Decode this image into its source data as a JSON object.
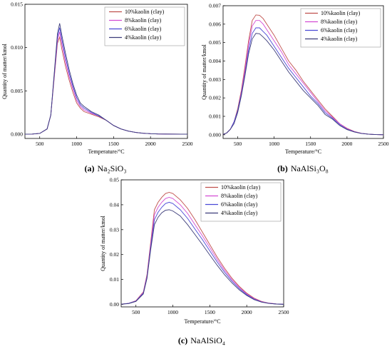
{
  "page": {
    "background": "#ffffff"
  },
  "charts": [
    {
      "id": "a",
      "caption_letter": "(a)",
      "caption_text": "Na₂SiO₃",
      "type": "line",
      "xlabel": "Temperature/°C",
      "ylabel": "Quantity of matter/kmol",
      "xlim": [
        300,
        2500
      ],
      "ylim": [
        -0.0005,
        0.015
      ],
      "xticks": [
        500,
        1000,
        1500,
        2000,
        2500
      ],
      "yticks": [
        0.0,
        0.005,
        0.01,
        0.015
      ],
      "ytick_labels": [
        "0.000",
        "0.005",
        "0.010",
        "0.015"
      ],
      "legend_position": "top-right",
      "series": [
        {
          "name": "10%kaolin (clay)",
          "color": "#c0504d",
          "x": [
            300,
            400,
            500,
            600,
            650,
            700,
            740,
            770,
            800,
            850,
            900,
            950,
            1000,
            1050,
            1100,
            1200,
            1300,
            1400,
            1500,
            1600,
            1700,
            1800,
            1900,
            2000,
            2100,
            2200,
            2500
          ],
          "y": [
            0,
            1e-05,
            8e-05,
            0.0006,
            0.0022,
            0.0068,
            0.0105,
            0.0112,
            0.0098,
            0.0078,
            0.0062,
            0.0048,
            0.0036,
            0.003,
            0.0026,
            0.0023,
            0.002,
            0.0016,
            0.001,
            0.0006,
            0.00035,
            0.0002,
            0.0001,
            5e-05,
            2e-05,
            1e-05,
            0
          ]
        },
        {
          "name": "8%kaolin (clay)",
          "color": "#d34cd3",
          "x": [
            300,
            400,
            500,
            600,
            650,
            700,
            740,
            770,
            800,
            850,
            900,
            950,
            1000,
            1050,
            1100,
            1200,
            1300,
            1400,
            1500,
            1600,
            1700,
            1800,
            1900,
            2000,
            2100,
            2200,
            2500
          ],
          "y": [
            0,
            1e-05,
            8e-05,
            0.0006,
            0.0022,
            0.007,
            0.0108,
            0.0118,
            0.0104,
            0.0083,
            0.0066,
            0.0052,
            0.0039,
            0.0032,
            0.0028,
            0.0024,
            0.0021,
            0.0016,
            0.001,
            0.0006,
            0.00035,
            0.0002,
            0.0001,
            5e-05,
            2e-05,
            1e-05,
            0
          ]
        },
        {
          "name": "6%kaolin (clay)",
          "color": "#4a4ad6",
          "x": [
            300,
            400,
            500,
            600,
            650,
            700,
            740,
            770,
            800,
            850,
            900,
            950,
            1000,
            1050,
            1100,
            1200,
            1300,
            1400,
            1500,
            1600,
            1700,
            1800,
            1900,
            2000,
            2100,
            2200,
            2500
          ],
          "y": [
            0,
            1e-05,
            8e-05,
            0.0006,
            0.0022,
            0.0072,
            0.0112,
            0.0123,
            0.0109,
            0.0088,
            0.007,
            0.0055,
            0.0042,
            0.0034,
            0.003,
            0.0025,
            0.0021,
            0.0016,
            0.001,
            0.0006,
            0.00035,
            0.0002,
            0.0001,
            5e-05,
            2e-05,
            1e-05,
            0
          ]
        },
        {
          "name": "4%kaolin (clay)",
          "color": "#3d3d7a",
          "x": [
            300,
            400,
            500,
            600,
            650,
            700,
            740,
            770,
            800,
            850,
            900,
            950,
            1000,
            1050,
            1100,
            1200,
            1300,
            1400,
            1500,
            1600,
            1700,
            1800,
            1900,
            2000,
            2100,
            2200,
            2500
          ],
          "y": [
            0,
            1e-05,
            8e-05,
            0.0006,
            0.0022,
            0.0074,
            0.0116,
            0.0128,
            0.0114,
            0.0093,
            0.0074,
            0.0058,
            0.0045,
            0.0036,
            0.0032,
            0.0026,
            0.0022,
            0.0016,
            0.001,
            0.0006,
            0.00035,
            0.0002,
            0.0001,
            5e-05,
            2e-05,
            1e-05,
            0
          ]
        }
      ]
    },
    {
      "id": "b",
      "caption_letter": "(b)",
      "caption_text": "NaAlSi₃O₈",
      "type": "line",
      "xlabel": "Temperature/°C",
      "ylabel": "Quantity of matter/kmol",
      "xlim": [
        300,
        2500
      ],
      "ylim": [
        -0.0002,
        0.007
      ],
      "xticks": [
        500,
        1000,
        1500,
        2000,
        2500
      ],
      "yticks": [
        0.0,
        0.001,
        0.002,
        0.003,
        0.004,
        0.005,
        0.006,
        0.007
      ],
      "ytick_labels": [
        "0.000",
        "0.001",
        "0.002",
        "0.003",
        "0.004",
        "0.005",
        "0.006",
        "0.007"
      ],
      "legend_position": "top-right",
      "series": [
        {
          "name": "10%kaolin (clay)",
          "color": "#c0504d",
          "x": [
            300,
            350,
            400,
            450,
            500,
            550,
            600,
            650,
            700,
            750,
            800,
            850,
            900,
            1000,
            1100,
            1200,
            1300,
            1400,
            1500,
            1600,
            1700,
            1800,
            1900,
            2000,
            2100,
            2200,
            2300,
            2400,
            2500
          ],
          "y": [
            2e-05,
            0.0001,
            0.0003,
            0.0007,
            0.0014,
            0.0024,
            0.0037,
            0.0051,
            0.0062,
            0.0065,
            0.00648,
            0.0063,
            0.006,
            0.0054,
            0.0047,
            0.004,
            0.0035,
            0.0029,
            0.0024,
            0.0019,
            0.0014,
            0.001,
            0.0006,
            0.00035,
            0.00018,
            8e-05,
            3e-05,
            1e-05,
            0
          ]
        },
        {
          "name": "8%kaolin (clay)",
          "color": "#d34cd3",
          "x": [
            300,
            350,
            400,
            450,
            500,
            550,
            600,
            650,
            700,
            750,
            800,
            850,
            900,
            1000,
            1100,
            1200,
            1300,
            1400,
            1500,
            1600,
            1700,
            1800,
            1900,
            2000,
            2100,
            2200,
            2300,
            2400,
            2500
          ],
          "y": [
            2e-05,
            0.0001,
            0.0003,
            0.0007,
            0.0013,
            0.0023,
            0.0035,
            0.0049,
            0.0059,
            0.0062,
            0.0062,
            0.006,
            0.0057,
            0.0051,
            0.0045,
            0.0038,
            0.0033,
            0.0028,
            0.0023,
            0.0018,
            0.0013,
            0.00095,
            0.0006,
            0.00033,
            0.00017,
            8e-05,
            3e-05,
            1e-05,
            0
          ]
        },
        {
          "name": "6%kaolin (clay)",
          "color": "#4a4ad6",
          "x": [
            300,
            350,
            400,
            450,
            500,
            550,
            600,
            650,
            700,
            750,
            800,
            850,
            900,
            1000,
            1100,
            1200,
            1300,
            1400,
            1500,
            1600,
            1700,
            1800,
            1900,
            2000,
            2100,
            2200,
            2300,
            2400,
            2500
          ],
          "y": [
            2e-05,
            0.0001,
            0.0003,
            0.0007,
            0.0013,
            0.0022,
            0.0033,
            0.0046,
            0.0055,
            0.0058,
            0.0058,
            0.0056,
            0.0054,
            0.0048,
            0.0042,
            0.0036,
            0.0031,
            0.0026,
            0.0021,
            0.0017,
            0.0012,
            0.0009,
            0.00055,
            0.0003,
            0.00016,
            7e-05,
            3e-05,
            1e-05,
            0
          ]
        },
        {
          "name": "4%kaolin (clay)",
          "color": "#3d3d7a",
          "x": [
            300,
            350,
            400,
            450,
            500,
            550,
            600,
            650,
            700,
            750,
            800,
            850,
            900,
            1000,
            1100,
            1200,
            1300,
            1400,
            1500,
            1600,
            1700,
            1800,
            1900,
            2000,
            2100,
            2200,
            2300,
            2400,
            2500
          ],
          "y": [
            2e-05,
            0.0001,
            0.0003,
            0.0006,
            0.0012,
            0.0021,
            0.0032,
            0.0044,
            0.0052,
            0.0055,
            0.00548,
            0.0053,
            0.0051,
            0.0046,
            0.004,
            0.0034,
            0.0029,
            0.0024,
            0.002,
            0.0016,
            0.0011,
            0.00085,
            0.0005,
            0.00028,
            0.00015,
            7e-05,
            3e-05,
            1e-05,
            0
          ]
        }
      ]
    },
    {
      "id": "c",
      "caption_letter": "(c)",
      "caption_text": "NaAlSiO₄",
      "type": "line",
      "xlabel": "Temperature/°C",
      "ylabel": "Quantity of matter/kmol",
      "xlim": [
        300,
        2500
      ],
      "ylim": [
        -0.001,
        0.05
      ],
      "xticks": [
        500,
        1000,
        1500,
        2000,
        2500
      ],
      "yticks": [
        0.0,
        0.01,
        0.02,
        0.03,
        0.04,
        0.05
      ],
      "ytick_labels": [
        "0.00",
        "0.01",
        "0.02",
        "0.03",
        "0.04",
        "0.05"
      ],
      "legend_position": "top-right",
      "series": [
        {
          "name": "10%kaolin (clay)",
          "color": "#c0504d",
          "x": [
            300,
            400,
            500,
            600,
            650,
            700,
            750,
            800,
            850,
            900,
            950,
            1000,
            1100,
            1200,
            1300,
            1400,
            1500,
            1600,
            1700,
            1800,
            1900,
            2000,
            2100,
            2200,
            2300,
            2400,
            2500
          ],
          "y": [
            0.0001,
            0.0004,
            0.0015,
            0.005,
            0.012,
            0.025,
            0.038,
            0.041,
            0.043,
            0.0445,
            0.045,
            0.0445,
            0.042,
            0.0385,
            0.034,
            0.029,
            0.024,
            0.019,
            0.0145,
            0.0105,
            0.0072,
            0.0045,
            0.0025,
            0.0012,
            0.0005,
            0.0002,
            5e-05
          ]
        },
        {
          "name": "8%kaolin (clay)",
          "color": "#d34cd3",
          "x": [
            300,
            400,
            500,
            600,
            650,
            700,
            750,
            800,
            850,
            900,
            950,
            1000,
            1100,
            1200,
            1300,
            1400,
            1500,
            1600,
            1700,
            1800,
            1900,
            2000,
            2100,
            2200,
            2300,
            2400,
            2500
          ],
          "y": [
            0.0001,
            0.0004,
            0.0014,
            0.0048,
            0.0115,
            0.024,
            0.036,
            0.039,
            0.041,
            0.0425,
            0.043,
            0.0425,
            0.04,
            0.0365,
            0.032,
            0.0275,
            0.0228,
            0.018,
            0.0137,
            0.0099,
            0.0068,
            0.0042,
            0.0023,
            0.0011,
            0.0005,
            0.0002,
            5e-05
          ]
        },
        {
          "name": "6%kaolin (clay)",
          "color": "#4a4ad6",
          "x": [
            300,
            400,
            500,
            600,
            650,
            700,
            750,
            800,
            850,
            900,
            950,
            1000,
            1100,
            1200,
            1300,
            1400,
            1500,
            1600,
            1700,
            1800,
            1900,
            2000,
            2100,
            2200,
            2300,
            2400,
            2500
          ],
          "y": [
            0.0001,
            0.0004,
            0.0013,
            0.0045,
            0.011,
            0.023,
            0.034,
            0.037,
            0.039,
            0.0405,
            0.041,
            0.0405,
            0.038,
            0.0345,
            0.0302,
            0.026,
            0.0215,
            0.017,
            0.0129,
            0.0093,
            0.0063,
            0.0039,
            0.0021,
            0.001,
            0.0004,
            0.00015,
            4e-05
          ]
        },
        {
          "name": "4%kaolin (clay)",
          "color": "#3d3d7a",
          "x": [
            300,
            400,
            500,
            600,
            650,
            700,
            750,
            800,
            850,
            900,
            950,
            1000,
            1100,
            1200,
            1300,
            1400,
            1500,
            1600,
            1700,
            1800,
            1900,
            2000,
            2100,
            2200,
            2300,
            2400,
            2500
          ],
          "y": [
            0.0001,
            0.0003,
            0.0012,
            0.0042,
            0.0105,
            0.022,
            0.032,
            0.035,
            0.0368,
            0.0378,
            0.038,
            0.0375,
            0.0355,
            0.032,
            0.028,
            0.024,
            0.0198,
            0.0157,
            0.0119,
            0.0086,
            0.0058,
            0.0036,
            0.0019,
            0.0009,
            0.0004,
            0.00015,
            4e-05
          ]
        }
      ]
    }
  ]
}
